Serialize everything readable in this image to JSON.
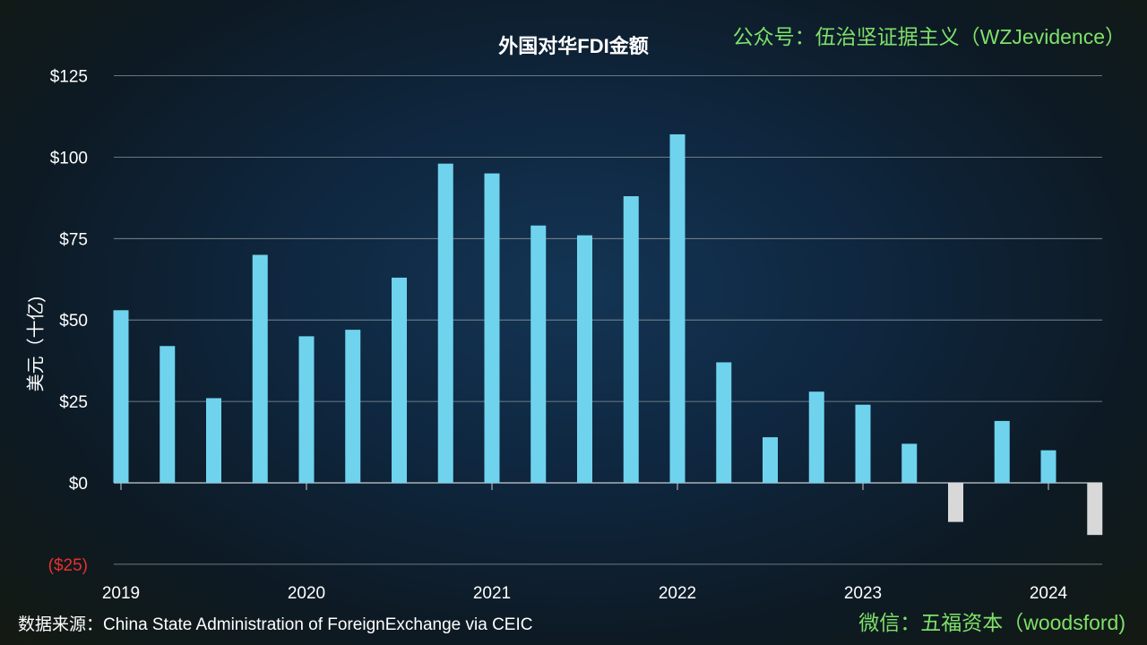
{
  "watermark_top": "公众号：伍治坚证据主义（WZJevidence）",
  "watermark_bottom": "微信：五福资本（woodsford)",
  "source": "数据来源：China State Administration of ForeignExchange via CEIC",
  "colors": {
    "positive": "#6fd3ee",
    "negative": "#d8d8d8",
    "negative_tick": "#e53030",
    "grid": "#8a949c"
  },
  "chart_data": {
    "type": "bar",
    "title": "外国对华FDI金额",
    "xlabel": "",
    "ylabel": "美元（十亿)",
    "ylim": [
      -25,
      125
    ],
    "yticks": [
      125,
      100,
      75,
      50,
      25,
      0,
      -25
    ],
    "ytick_labels": [
      "$125",
      "$100",
      "$75",
      "$50",
      "$25",
      "$0",
      "($25)"
    ],
    "xtick_labels": [
      "2019",
      "2020",
      "2021",
      "2022",
      "2023",
      "2024"
    ],
    "categories": [
      "2019Q1",
      "2019Q2",
      "2019Q3",
      "2019Q4",
      "2020Q1",
      "2020Q2",
      "2020Q3",
      "2020Q4",
      "2021Q1",
      "2021Q2",
      "2021Q3",
      "2021Q4",
      "2022Q1",
      "2022Q2",
      "2022Q3",
      "2022Q4",
      "2023Q1",
      "2023Q2",
      "2023Q3",
      "2023Q4",
      "2024Q1",
      "2024Q2"
    ],
    "values": [
      53,
      42,
      26,
      70,
      45,
      47,
      63,
      98,
      95,
      79,
      76,
      88,
      107,
      37,
      14,
      28,
      24,
      12,
      -12,
      19,
      10,
      -16
    ],
    "grid": true
  }
}
